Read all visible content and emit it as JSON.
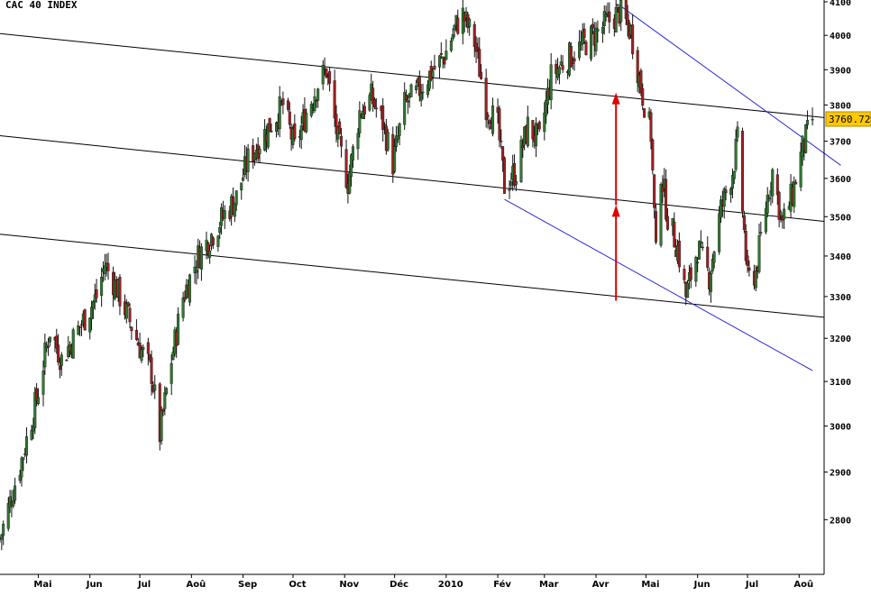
{
  "chart_data": {
    "type": "candlestick",
    "title": "CAC 40 INDEX",
    "xlabel": "",
    "ylabel": "",
    "y_scale": "log",
    "ylim": [
      2720,
      4100
    ],
    "y_ticks": [
      4100,
      4000,
      3900,
      3800,
      3700,
      3600,
      3500,
      3400,
      3300,
      3200,
      3100,
      3000,
      2900,
      2800
    ],
    "x_range": [
      "2009-04-08",
      "2010-08-16"
    ],
    "x_ticks": [
      {
        "date": "2009-05-01",
        "label": "Mai"
      },
      {
        "date": "2009-06-01",
        "label": "Jun"
      },
      {
        "date": "2009-07-01",
        "label": "Jul"
      },
      {
        "date": "2009-08-01",
        "label": "Aoû"
      },
      {
        "date": "2009-09-01",
        "label": "Sep"
      },
      {
        "date": "2009-10-01",
        "label": "Oct"
      },
      {
        "date": "2009-11-01",
        "label": "Nov"
      },
      {
        "date": "2009-12-01",
        "label": "Déc"
      },
      {
        "date": "2010-01-01",
        "label": "2010"
      },
      {
        "date": "2010-02-01",
        "label": "Fév"
      },
      {
        "date": "2010-03-01",
        "label": "Mar"
      },
      {
        "date": "2010-04-01",
        "label": "Avr"
      },
      {
        "date": "2010-05-01",
        "label": "Mai"
      },
      {
        "date": "2010-06-01",
        "label": "Jun"
      },
      {
        "date": "2010-07-01",
        "label": "Jul"
      },
      {
        "date": "2010-08-01",
        "label": "Aoû"
      }
    ],
    "grid": false,
    "last_value_label": "3760.72",
    "colors": {
      "up": "#2f7a2f",
      "down": "#a02020",
      "wick": "#000000",
      "channel": "#000000",
      "blue_channel": "#2a2ae0",
      "arrow": "#e00000",
      "label_bg": "#ffc800"
    },
    "close_path": [
      {
        "date": "2009-04-08",
        "close": 2760
      },
      {
        "date": "2009-04-15",
        "close": 2850
      },
      {
        "date": "2009-04-22",
        "close": 2940
      },
      {
        "date": "2009-04-30",
        "close": 3060
      },
      {
        "date": "2009-05-08",
        "close": 3220
      },
      {
        "date": "2009-05-15",
        "close": 3150
      },
      {
        "date": "2009-05-22",
        "close": 3200
      },
      {
        "date": "2009-05-29",
        "close": 3250
      },
      {
        "date": "2009-06-05",
        "close": 3300
      },
      {
        "date": "2009-06-10",
        "close": 3380
      },
      {
        "date": "2009-06-17",
        "close": 3320
      },
      {
        "date": "2009-06-24",
        "close": 3250
      },
      {
        "date": "2009-07-01",
        "close": 3180
      },
      {
        "date": "2009-07-08",
        "close": 3120
      },
      {
        "date": "2009-07-13",
        "close": 2980
      },
      {
        "date": "2009-07-20",
        "close": 3150
      },
      {
        "date": "2009-07-27",
        "close": 3300
      },
      {
        "date": "2009-08-05",
        "close": 3400
      },
      {
        "date": "2009-08-14",
        "close": 3460
      },
      {
        "date": "2009-08-20",
        "close": 3500
      },
      {
        "date": "2009-08-28",
        "close": 3550
      },
      {
        "date": "2009-09-04",
        "close": 3650
      },
      {
        "date": "2009-09-11",
        "close": 3700
      },
      {
        "date": "2009-09-18",
        "close": 3750
      },
      {
        "date": "2009-09-25",
        "close": 3800
      },
      {
        "date": "2009-10-02",
        "close": 3680
      },
      {
        "date": "2009-10-09",
        "close": 3780
      },
      {
        "date": "2009-10-16",
        "close": 3860
      },
      {
        "date": "2009-10-21",
        "close": 3900
      },
      {
        "date": "2009-10-28",
        "close": 3700
      },
      {
        "date": "2009-11-03",
        "close": 3590
      },
      {
        "date": "2009-11-10",
        "close": 3780
      },
      {
        "date": "2009-11-17",
        "close": 3820
      },
      {
        "date": "2009-11-24",
        "close": 3750
      },
      {
        "date": "2009-11-30",
        "close": 3640
      },
      {
        "date": "2009-12-07",
        "close": 3800
      },
      {
        "date": "2009-12-14",
        "close": 3830
      },
      {
        "date": "2009-12-21",
        "close": 3880
      },
      {
        "date": "2009-12-31",
        "close": 3940
      },
      {
        "date": "2010-01-07",
        "close": 4030
      },
      {
        "date": "2010-01-11",
        "close": 4060
      },
      {
        "date": "2010-01-18",
        "close": 3980
      },
      {
        "date": "2010-01-25",
        "close": 3800
      },
      {
        "date": "2010-02-01",
        "close": 3740
      },
      {
        "date": "2010-02-05",
        "close": 3580
      },
      {
        "date": "2010-02-12",
        "close": 3620
      },
      {
        "date": "2010-02-19",
        "close": 3740
      },
      {
        "date": "2010-02-26",
        "close": 3700
      },
      {
        "date": "2010-03-05",
        "close": 3880
      },
      {
        "date": "2010-03-12",
        "close": 3920
      },
      {
        "date": "2010-03-19",
        "close": 3950
      },
      {
        "date": "2010-03-26",
        "close": 3980
      },
      {
        "date": "2010-04-06",
        "close": 4030
      },
      {
        "date": "2010-04-15",
        "close": 4070
      },
      {
        "date": "2010-04-22",
        "close": 4010
      },
      {
        "date": "2010-04-28",
        "close": 3850
      },
      {
        "date": "2010-05-04",
        "close": 3720
      },
      {
        "date": "2010-05-07",
        "close": 3400
      },
      {
        "date": "2010-05-10",
        "close": 3620
      },
      {
        "date": "2010-05-14",
        "close": 3500
      },
      {
        "date": "2010-05-20",
        "close": 3420
      },
      {
        "date": "2010-05-25",
        "close": 3300
      },
      {
        "date": "2010-06-01",
        "close": 3420
      },
      {
        "date": "2010-06-08",
        "close": 3350
      },
      {
        "date": "2010-06-15",
        "close": 3520
      },
      {
        "date": "2010-06-22",
        "close": 3620
      },
      {
        "date": "2010-06-25",
        "close": 3700
      },
      {
        "date": "2010-07-01",
        "close": 3340
      },
      {
        "date": "2010-07-06",
        "close": 3360
      },
      {
        "date": "2010-07-12",
        "close": 3530
      },
      {
        "date": "2010-07-16",
        "close": 3620
      },
      {
        "date": "2010-07-22",
        "close": 3480
      },
      {
        "date": "2010-07-28",
        "close": 3560
      },
      {
        "date": "2010-08-03",
        "close": 3680
      },
      {
        "date": "2010-08-09",
        "close": 3761
      }
    ],
    "trend_lines": [
      {
        "name": "upper-channel",
        "color": "black",
        "from": {
          "date": "2009-04-08",
          "y": 4005
        },
        "to": {
          "date": "2010-08-16",
          "y": 3765
        }
      },
      {
        "name": "middle-channel",
        "color": "black",
        "from": {
          "date": "2009-04-08",
          "y": 3715
        },
        "to": {
          "date": "2010-08-16",
          "y": 3488
        }
      },
      {
        "name": "lower-channel",
        "color": "black",
        "from": {
          "date": "2009-04-08",
          "y": 3455
        },
        "to": {
          "date": "2010-08-16",
          "y": 3250
        }
      },
      {
        "name": "blue-upper",
        "color": "blue",
        "from": {
          "date": "2010-04-15",
          "y": 4090
        },
        "to": {
          "date": "2010-08-26",
          "y": 3635
        }
      },
      {
        "name": "blue-lower",
        "color": "blue",
        "from": {
          "date": "2010-02-05",
          "y": 3545
        },
        "to": {
          "date": "2010-08-09",
          "y": 3125
        }
      }
    ],
    "annotations": [
      {
        "type": "arrow",
        "color": "red",
        "date": "2010-04-13",
        "from": 3290,
        "to": 3530
      },
      {
        "type": "arrow",
        "color": "red",
        "date": "2010-04-13",
        "from": 3530,
        "to": 3835
      }
    ]
  }
}
